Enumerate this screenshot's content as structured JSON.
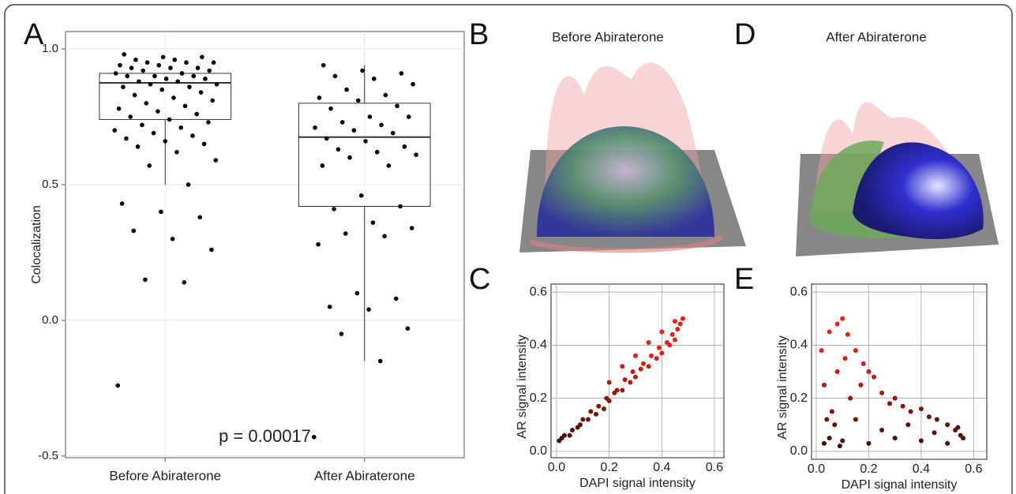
{
  "panel_labels": {
    "a": "A",
    "b": "B",
    "c": "C",
    "d": "D",
    "e": "E"
  },
  "renders": [
    {
      "title": "Before Abiraterone"
    },
    {
      "title": "After Abiraterone"
    }
  ],
  "chart_data": [
    {
      "type": "box",
      "ylabel": "Colocalization",
      "categories": [
        "Before Abiraterone",
        "After Abiraterone"
      ],
      "boxes": [
        {
          "low": 0.5,
          "q1": 0.74,
          "median": 0.875,
          "q3": 0.91,
          "high": 0.91,
          "points": [
            0.98,
            0.97,
            0.97,
            0.96,
            0.96,
            0.95,
            0.95,
            0.95,
            0.94,
            0.94,
            0.93,
            0.93,
            0.93,
            0.92,
            0.92,
            0.91,
            0.91,
            0.9,
            0.9,
            0.9,
            0.89,
            0.89,
            0.88,
            0.88,
            0.87,
            0.87,
            0.86,
            0.86,
            0.85,
            0.84,
            0.83,
            0.82,
            0.81,
            0.8,
            0.79,
            0.78,
            0.77,
            0.76,
            0.75,
            0.74,
            0.73,
            0.72,
            0.71,
            0.7,
            0.69,
            0.68,
            0.67,
            0.66,
            0.65,
            0.64,
            0.62,
            0.59,
            0.57,
            0.5,
            0.43,
            0.4,
            0.38,
            0.33,
            0.3,
            0.26,
            0.15,
            0.14,
            -0.24
          ]
        },
        {
          "low": -0.15,
          "q1": 0.42,
          "median": 0.675,
          "q3": 0.8,
          "high": 0.94,
          "points": [
            0.94,
            0.92,
            0.91,
            0.9,
            0.89,
            0.87,
            0.85,
            0.83,
            0.82,
            0.81,
            0.79,
            0.78,
            0.75,
            0.75,
            0.73,
            0.72,
            0.71,
            0.7,
            0.69,
            0.67,
            0.66,
            0.64,
            0.63,
            0.62,
            0.61,
            0.6,
            0.57,
            0.57,
            0.46,
            0.42,
            0.41,
            0.36,
            0.34,
            0.32,
            0.31,
            0.28,
            0.1,
            0.08,
            0.05,
            0.04,
            -0.03,
            -0.05,
            -0.15,
            -0.43
          ]
        }
      ],
      "ylim": [
        -0.506,
        1.064
      ],
      "yticks": [
        {
          "value": -0.5,
          "label": "-0.5"
        },
        {
          "value": 0,
          "label": "0.0"
        },
        0.5,
        {
          "value": 1,
          "label": "1.0"
        }
      ],
      "annotation": "p = 0.00017",
      "grid": true,
      "color": "#000000"
    },
    {
      "type": "scatter",
      "xlabel": "DAPI signal intensity",
      "ylabel": "AR signal intensity",
      "x": [
        0.01,
        0.02,
        0.03,
        0.05,
        0.06,
        0.08,
        0.09,
        0.1,
        0.12,
        0.13,
        0.15,
        0.16,
        0.18,
        0.19,
        0.2,
        0.22,
        0.23,
        0.25,
        0.26,
        0.28,
        0.29,
        0.3,
        0.32,
        0.33,
        0.35,
        0.36,
        0.38,
        0.39,
        0.4,
        0.42,
        0.43,
        0.44,
        0.45,
        0.46,
        0.47,
        0.48,
        0.2,
        0.25,
        0.3,
        0.35,
        0.4,
        0.45
      ],
      "y": [
        0.04,
        0.05,
        0.06,
        0.06,
        0.08,
        0.09,
        0.1,
        0.12,
        0.12,
        0.15,
        0.14,
        0.17,
        0.16,
        0.2,
        0.19,
        0.22,
        0.23,
        0.23,
        0.27,
        0.26,
        0.3,
        0.28,
        0.31,
        0.33,
        0.32,
        0.36,
        0.35,
        0.39,
        0.37,
        0.41,
        0.4,
        0.44,
        0.42,
        0.46,
        0.48,
        0.5,
        0.26,
        0.32,
        0.36,
        0.41,
        0.45,
        0.49
      ],
      "xlim": [
        -0.021,
        0.636
      ],
      "ylim": [
        -0.024,
        0.63
      ],
      "xticks": [
        {
          "value": 0,
          "label": "0.0"
        },
        0.2,
        0.4,
        0.6
      ],
      "yticks": [
        {
          "value": 0,
          "label": "0.0"
        },
        0.2,
        0.4,
        0.6
      ],
      "grid": true
    },
    {
      "type": "scatter",
      "xlabel": "DAPI signal intensity",
      "ylabel": "AR signal intensity",
      "x": [
        0.02,
        0.03,
        0.05,
        0.06,
        0.08,
        0.1,
        0.12,
        0.05,
        0.08,
        0.11,
        0.15,
        0.18,
        0.2,
        0.22,
        0.03,
        0.07,
        0.13,
        0.17,
        0.25,
        0.28,
        0.3,
        0.33,
        0.36,
        0.4,
        0.43,
        0.46,
        0.5,
        0.53,
        0.55,
        0.56,
        0.1,
        0.2,
        0.3,
        0.4,
        0.5,
        0.15,
        0.25,
        0.35,
        0.45,
        0.54,
        0.04,
        0.09
      ],
      "y": [
        0.38,
        0.25,
        0.45,
        0.15,
        0.48,
        0.5,
        0.44,
        0.05,
        0.3,
        0.35,
        0.38,
        0.33,
        0.3,
        0.28,
        0.03,
        0.1,
        0.2,
        0.25,
        0.22,
        0.18,
        0.2,
        0.17,
        0.15,
        0.16,
        0.13,
        0.12,
        0.1,
        0.08,
        0.06,
        0.05,
        0.04,
        0.03,
        0.05,
        0.04,
        0.03,
        0.12,
        0.08,
        0.1,
        0.07,
        0.09,
        0.12,
        0.02
      ],
      "xlim": [
        -0.018,
        0.65
      ],
      "ylim": [
        -0.03,
        0.63
      ],
      "xticks": [
        {
          "value": 0,
          "label": "0.0"
        },
        0.2,
        0.4,
        0.6
      ],
      "yticks": [
        {
          "value": 0,
          "label": "0.0"
        },
        0.2,
        0.4,
        0.6
      ],
      "grid": true
    }
  ]
}
